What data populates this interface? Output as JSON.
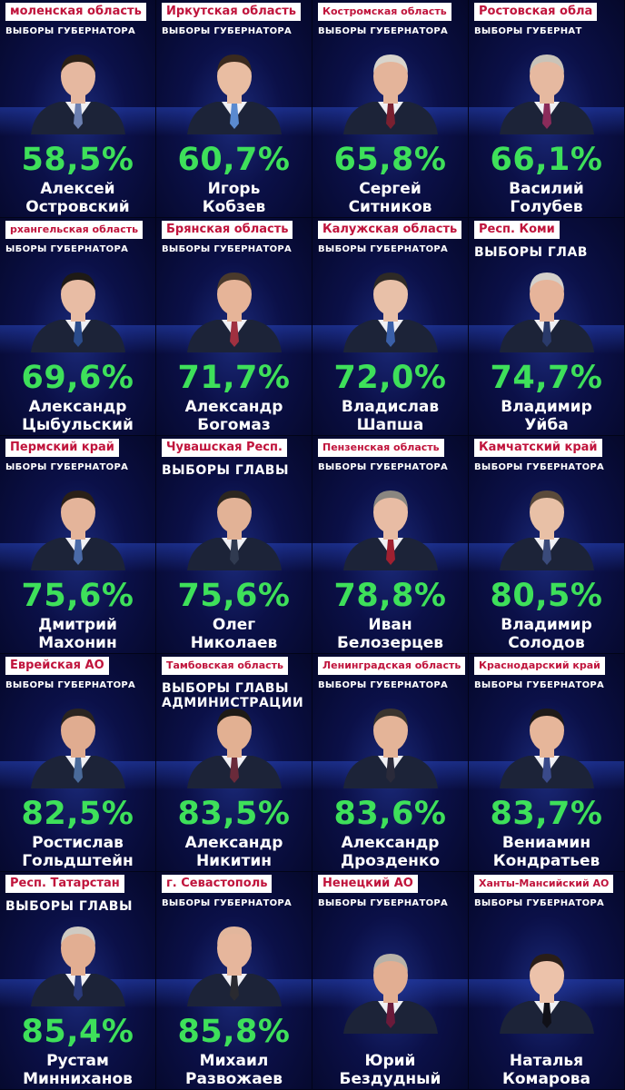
{
  "cards": [
    {
      "region": "моленская область",
      "election": "ВЫБОРЫ ГУБЕРНАТОРА",
      "percent": "58,5%",
      "first": "Алексей",
      "last": "Островский",
      "hair": "#2a2016",
      "skin": "#e6b8a0",
      "tie": "#6b7fb0"
    },
    {
      "region": "Иркутская область",
      "election": "ВЫБОРЫ ГУБЕРНАТОРА",
      "percent": "60,7%",
      "first": "Игорь",
      "last": "Кобзев",
      "hair": "#3a2a1e",
      "skin": "#e9bda2",
      "tie": "#5a8ad0"
    },
    {
      "region": "Костромская область",
      "election": "ВЫБОРЫ ГУБЕРНАТОРА",
      "percent": "65,8%",
      "first": "Сергей",
      "last": "Ситников",
      "hair": "#d8d4cc",
      "skin": "#e4b49a",
      "tie": "#7a2030"
    },
    {
      "region": "Ростовская обла",
      "election": "ВЫБОРЫ ГУБЕРНАТ",
      "percent": "66,1%",
      "first": "Василий",
      "last": "Голубев",
      "hair": "#c9c3b8",
      "skin": "#e6b9a0",
      "tie": "#8a2b5a"
    },
    {
      "region": "рхангельская область",
      "election": "ЫБОРЫ ГУБЕРНАТОРА",
      "percent": "69,6%",
      "first": "Александр",
      "last": "Цыбульский",
      "hair": "#1e1a16",
      "skin": "#e8bca4",
      "tie": "#2a4b8a"
    },
    {
      "region": "Брянская область",
      "election": "ВЫБОРЫ ГУБЕРНАТОРА",
      "percent": "71,7%",
      "first": "Александр",
      "last": "Богомаз",
      "hair": "#4a3a2c",
      "skin": "#e6b498",
      "tie": "#a03040"
    },
    {
      "region": "Калужская область",
      "election": "ВЫБОРЫ ГУБЕРНАТОРА",
      "percent": "72,0%",
      "first": "Владислав",
      "last": "Шапша",
      "hair": "#2e2a26",
      "skin": "#e8c0a8",
      "tie": "#3a5fa8"
    },
    {
      "region": "Респ. Коми",
      "election": "ВЫБОРЫ ГЛАВ",
      "percent": "74,7%",
      "first": "Владимир",
      "last": "Уйба",
      "hair": "#d4d0ca",
      "skin": "#e6b49a",
      "tie": "#2a3a6a",
      "big": true
    },
    {
      "region": "Пермский край",
      "election": "ЫБОРЫ ГУБЕРНАТОРА",
      "percent": "75,6%",
      "first": "Дмитрий",
      "last": "Махонин",
      "hair": "#2a2018",
      "skin": "#e4b49a",
      "tie": "#4a6aa8"
    },
    {
      "region": "Чувашская Респ.",
      "election": "ВЫБОРЫ ГЛАВЫ",
      "percent": "75,6%",
      "first": "Олег",
      "last": "Николаев",
      "hair": "#2c2620",
      "skin": "#e2b296",
      "tie": "#303a50",
      "big": true
    },
    {
      "region": "Пензенская область",
      "election": "ВЫБОРЫ ГУБЕРНАТОРА",
      "percent": "78,8%",
      "first": "Иван",
      "last": "Белозерцев",
      "hair": "#8a8680",
      "skin": "#e8bca4",
      "tie": "#a02030"
    },
    {
      "region": "Камчатский край",
      "election": "ВЫБОРЫ ГУБЕРНАТОРА",
      "percent": "80,5%",
      "first": "Владимир",
      "last": "Солодов",
      "hair": "#5a4a3a",
      "skin": "#e8c0a6",
      "tie": "#3a4a7a"
    },
    {
      "region": "Еврейская АО",
      "election": "ВЫБОРЫ ГУБЕРНАТОРА",
      "percent": "82,5%",
      "first": "Ростислав",
      "last": "Гольдштейн",
      "hair": "#2a2420",
      "skin": "#e0ac90",
      "tie": "#4a6a9a"
    },
    {
      "region": "Тамбовская область",
      "election": "ВЫБОРЫ ГЛАВЫ АДМИНИСТРАЦИИ",
      "percent": "83,5%",
      "first": "Александр",
      "last": "Никитин",
      "hair": "#1e1a16",
      "skin": "#e2b092",
      "tie": "#6a2a3a",
      "big": true
    },
    {
      "region": "Ленинградская область",
      "election": "ВЫБОРЫ ГУБЕРНАТОРА",
      "percent": "83,6%",
      "first": "Александр",
      "last": "Дрозденко",
      "hair": "#3a342e",
      "skin": "#e4b498",
      "tie": "#2a2a3a"
    },
    {
      "region": "Краснодарский край",
      "election": "ВЫБОРЫ ГУБЕРНАТОРА",
      "percent": "83,7%",
      "first": "Вениамин",
      "last": "Кондратьев",
      "hair": "#1e1a18",
      "skin": "#e6b69a",
      "tie": "#3a4a8a"
    },
    {
      "region": "Респ. Татарстан",
      "election": "ВЫБОРЫ ГЛАВЫ",
      "percent": "85,4%",
      "first": "Рустам",
      "last": "Минниханов",
      "hair": "#cfcac2",
      "skin": "#e2ae92",
      "tie": "#2a3a7a",
      "big": true
    },
    {
      "region": "г. Севастополь",
      "election": "ВЫБОРЫ ГУБЕРНАТОРА",
      "percent": "85,8%",
      "first": "Михаил",
      "last": "Развожаев",
      "hair": "#e2b69c",
      "skin": "#e6b69c",
      "tie": "#2a2a30"
    },
    {
      "region": "Ненецкий АО",
      "election": "ВЫБОРЫ ГУБЕРНАТОРА",
      "percent": "",
      "first": "Юрий",
      "last": "Бездудный",
      "hair": "#b8b2a8",
      "skin": "#e2ae92",
      "tie": "#6a1a3a"
    },
    {
      "region": "Ханты-Мансийский АО",
      "election": "ВЫБОРЫ ГУБЕРНАТОРА",
      "percent": "",
      "first": "Наталья",
      "last": "Комарова",
      "hair": "#2a1e18",
      "skin": "#ecc2aa",
      "tie": "#101018"
    }
  ]
}
